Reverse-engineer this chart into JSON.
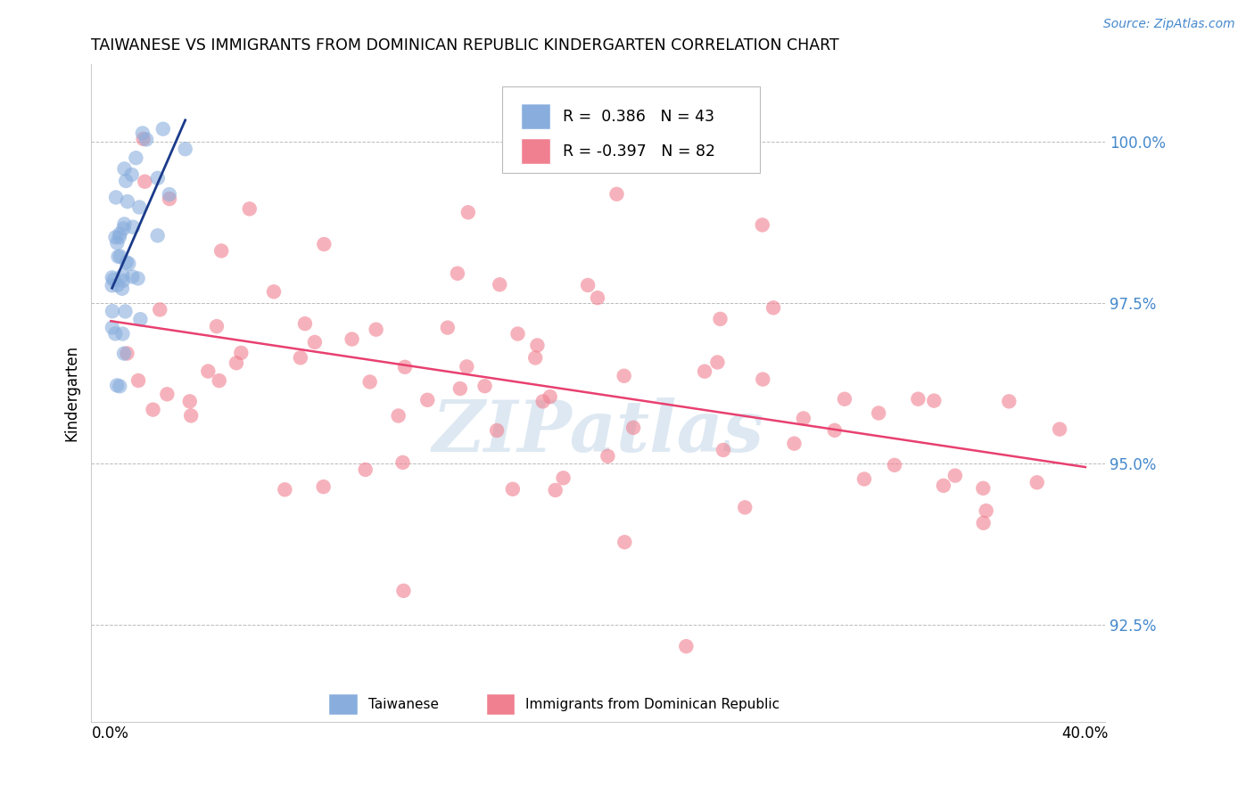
{
  "title": "TAIWANESE VS IMMIGRANTS FROM DOMINICAN REPUBLIC KINDERGARTEN CORRELATION CHART",
  "source": "Source: ZipAtlas.com",
  "ylabel": "Kindergarten",
  "ytick_values": [
    0.925,
    0.95,
    0.975,
    1.0
  ],
  "ytick_labels": [
    "92.5%",
    "95.0%",
    "97.5%",
    "100.0%"
  ],
  "xlim": [
    0.0,
    0.4
  ],
  "ylim": [
    0.91,
    1.012
  ],
  "legend_blue_R": "0.386",
  "legend_blue_N": "43",
  "legend_pink_R": "-0.397",
  "legend_pink_N": "82",
  "blue_color": "#89AEDD",
  "pink_color": "#F08090",
  "blue_line_color": "#1A3A8A",
  "pink_line_color": "#E84070",
  "watermark_color": "#D8E4F0",
  "grid_color": "#BBBBBB",
  "right_label_color": "#4488CC",
  "blue_seed": 7,
  "pink_seed": 15,
  "pink_intercept": 0.973,
  "pink_slope": -0.062,
  "pink_noise": 0.013,
  "blue_intercept": 0.978,
  "blue_slope_val": 0.8,
  "blue_noise": 0.007
}
